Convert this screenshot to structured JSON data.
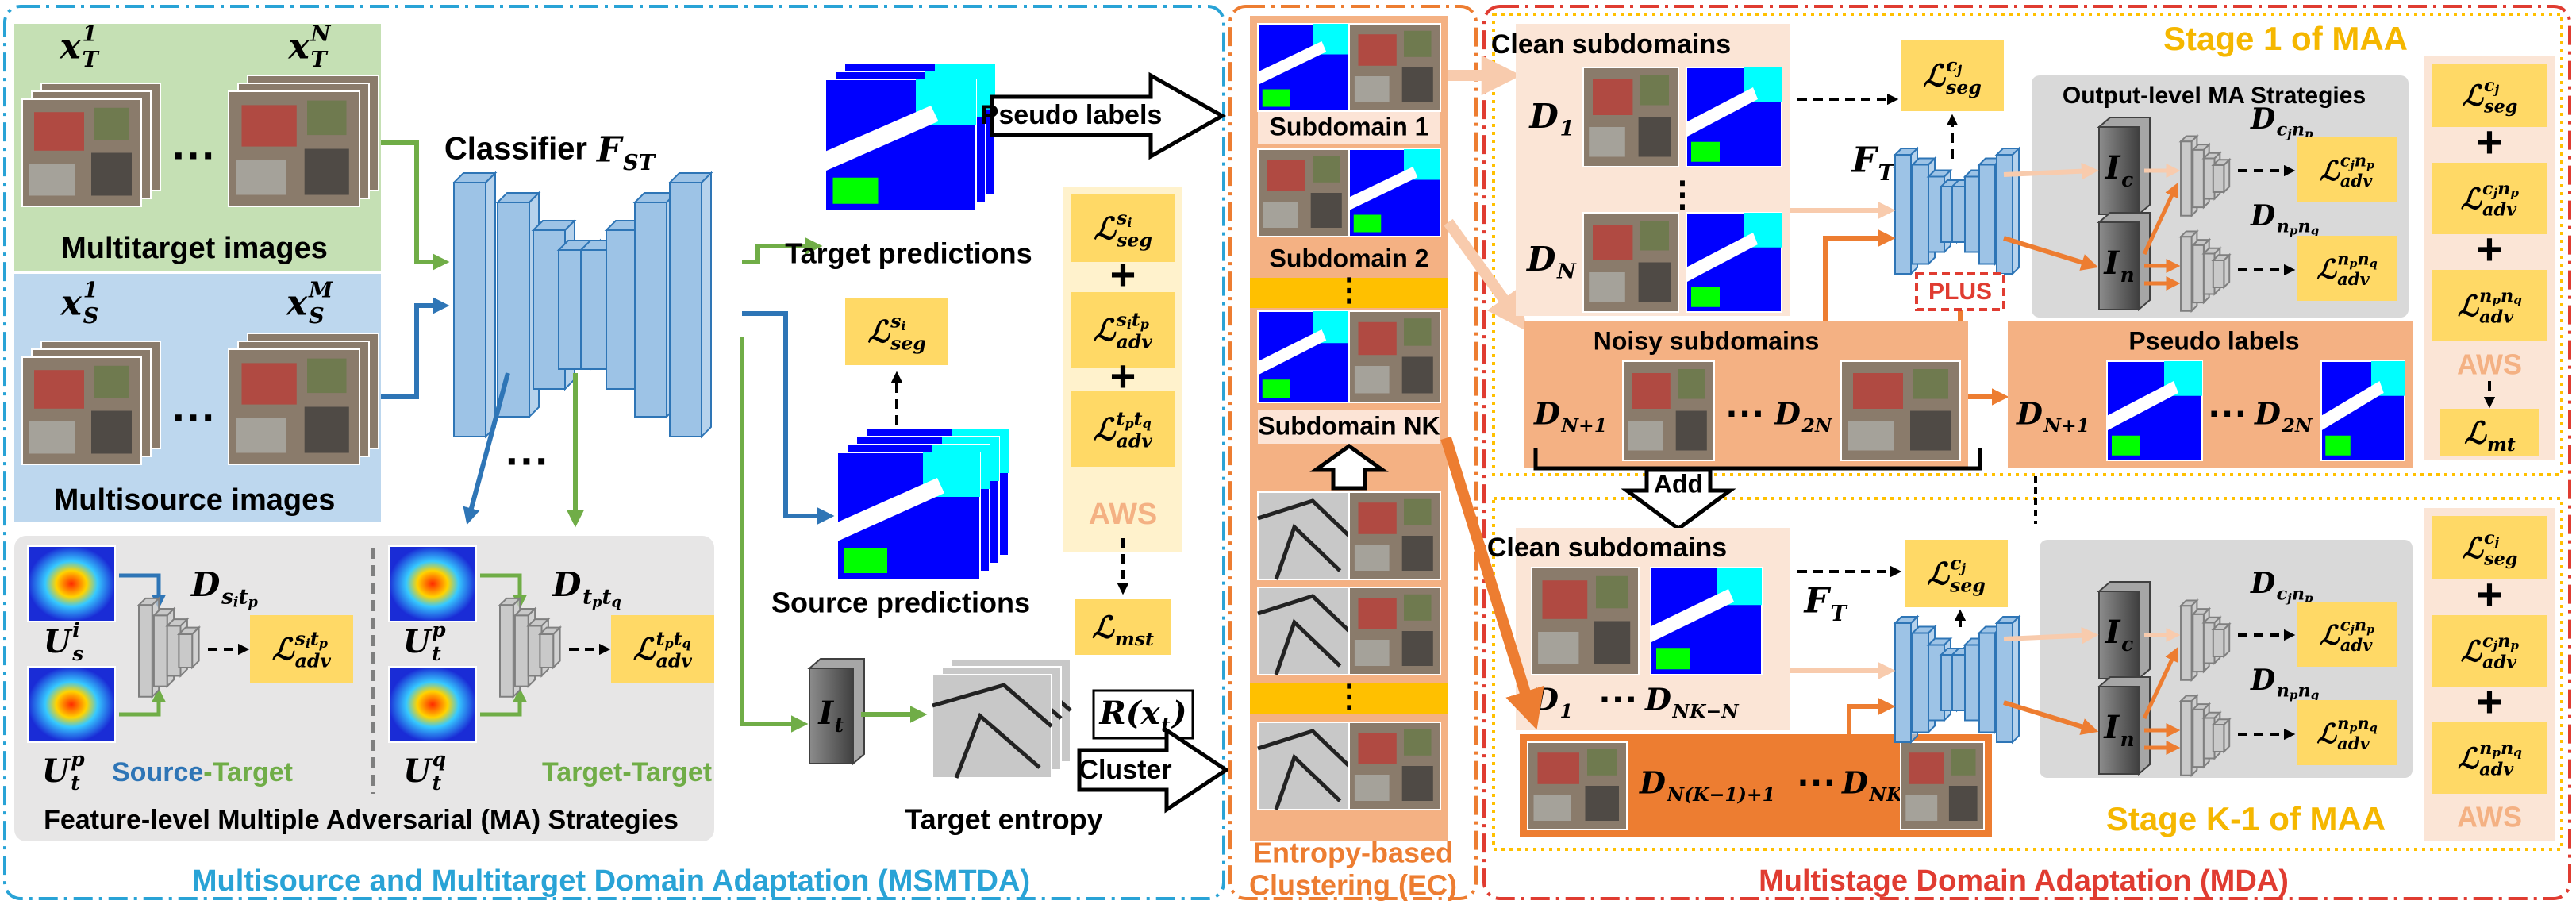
{
  "left": {
    "title": "Multisource and Multitarget Domain Adaptation (MSMTDA)",
    "targets": {
      "first": {
        "base": "x",
        "sub": "T",
        "sup": "1"
      },
      "last": {
        "base": "x",
        "sub": "T",
        "sup": "N"
      },
      "label": "Multitarget images"
    },
    "sources": {
      "first": {
        "base": "x",
        "sub": "S",
        "sup": "1"
      },
      "last": {
        "base": "x",
        "sub": "S",
        "sup": "M"
      },
      "label": "Multisource images"
    },
    "ellipsis": "···",
    "classifier": {
      "label": "Classifier",
      "symbol": {
        "base": "F",
        "sub": "ST"
      }
    },
    "pseudo_labels": "Pseudo labels",
    "target_predictions": "Target predictions",
    "source_predictions": "Source predictions",
    "source_seg_loss": {
      "base": "ℒ",
      "sub": "seg",
      "sup": [
        [
          "s",
          "i"
        ]
      ]
    },
    "aws": {
      "items": [
        {
          "base": "ℒ",
          "sub": "seg",
          "sup": [
            [
              "s",
              "i"
            ]
          ]
        },
        {
          "base": "ℒ",
          "sub": "adv",
          "sup": [
            [
              "s",
              "i"
            ],
            [
              "t",
              "p"
            ]
          ]
        },
        {
          "base": "ℒ",
          "sub": "adv",
          "sup": [
            [
              "t",
              "p"
            ],
            [
              "t",
              "q"
            ]
          ]
        }
      ],
      "plus": "+",
      "label": "AWS",
      "total": {
        "base": "ℒ",
        "sub": "mst"
      }
    },
    "entropy_map": {
      "base": "I",
      "sub": "t"
    },
    "target_entropy": "Target entropy",
    "ranking": {
      "base": "R(x",
      "sub": "t",
      "after": ")"
    },
    "cluster": "Cluster",
    "feature": {
      "caption": "Feature-level Multiple Adversarial (MA) Strategies",
      "st": {
        "u_top": {
          "base": "U",
          "sub": "s",
          "sup": "i"
        },
        "u_bottom": {
          "base": "U",
          "sub": "t",
          "sup": "p"
        },
        "disc": {
          "base": "D",
          "sub": [
            [
              "s",
              "i"
            ],
            [
              "t",
              "p"
            ]
          ]
        },
        "loss": {
          "base": "ℒ",
          "sub": "adv",
          "sup": [
            [
              "s",
              "i"
            ],
            [
              "t",
              "p"
            ]
          ]
        },
        "label_a": "Source",
        "label_b": "-Target"
      },
      "tt": {
        "u_top": {
          "base": "U",
          "sub": "t",
          "sup": "p"
        },
        "u_bottom": {
          "base": "U",
          "sub": "t",
          "sup": "q"
        },
        "disc": {
          "base": "D",
          "sub": [
            [
              "t",
              "p"
            ],
            [
              "t",
              "q"
            ]
          ]
        },
        "loss": {
          "base": "ℒ",
          "sub": "adv",
          "sup": [
            [
              "t",
              "p"
            ],
            [
              "t",
              "q"
            ]
          ]
        },
        "label": "Target-Target"
      }
    }
  },
  "ec": {
    "title_line1": "Entropy-based",
    "title_line2": "Clustering (EC)",
    "subdomains": [
      "Subdomain 1",
      "Subdomain 2",
      "Subdomain NK"
    ],
    "vdots": "⋮"
  },
  "mda": {
    "title": "Multistage Domain Adaptation (MDA)",
    "stage1": {
      "title": "Stage 1 of MAA",
      "clean": {
        "label": "Clean subdomains",
        "first": {
          "base": "D",
          "sub": "1"
        },
        "last": {
          "base": "D",
          "sub": "N"
        }
      },
      "seg_loss": {
        "base": "ℒ",
        "sub": "seg",
        "sup": [
          [
            "c",
            "j"
          ]
        ]
      },
      "model": {
        "base": "F",
        "sub": "T"
      },
      "output": {
        "label": "Output-level MA Strategies",
        "ic": {
          "base": "I",
          "sub": "c"
        },
        "in": {
          "base": "I",
          "sub": "n"
        },
        "d1": {
          "base": "D",
          "sub": [
            [
              "c",
              "j"
            ],
            [
              "n",
              "p"
            ]
          ]
        },
        "d2": {
          "base": "D",
          "sub": [
            [
              "n",
              "p"
            ],
            [
              "n",
              "q"
            ]
          ]
        },
        "l1": {
          "base": "ℒ",
          "sub": "adv",
          "sup": [
            [
              "c",
              "j"
            ],
            [
              "n",
              "p"
            ]
          ]
        },
        "l2": {
          "base": "ℒ",
          "sub": "adv",
          "sup": [
            [
              "n",
              "p"
            ],
            [
              "n",
              "q"
            ]
          ]
        }
      },
      "plus": "PLUS",
      "noisy": {
        "label": "Noisy subdomains",
        "first": {
          "base": "D",
          "sub": "N+1"
        },
        "last": {
          "base": "D",
          "sub": "2N"
        }
      },
      "pseudo": {
        "label": "Pseudo labels",
        "first": {
          "base": "D",
          "sub": "N+1"
        },
        "last": {
          "base": "D",
          "sub": "2N"
        }
      },
      "aws": {
        "label": "AWS",
        "total": {
          "base": "ℒ",
          "sub": "mt"
        }
      }
    },
    "add": "Add",
    "stagek": {
      "title": "Stage K-1 of MAA",
      "clean": {
        "label": "Clean subdomains",
        "first": {
          "base": "D",
          "sub": "1"
        },
        "last": {
          "base": "D",
          "sub": "NK−N"
        }
      },
      "noisy": {
        "first": {
          "base": "D",
          "sub": "N(K−1)+1"
        },
        "last": {
          "base": "D",
          "sub": "NK"
        }
      }
    }
  }
}
